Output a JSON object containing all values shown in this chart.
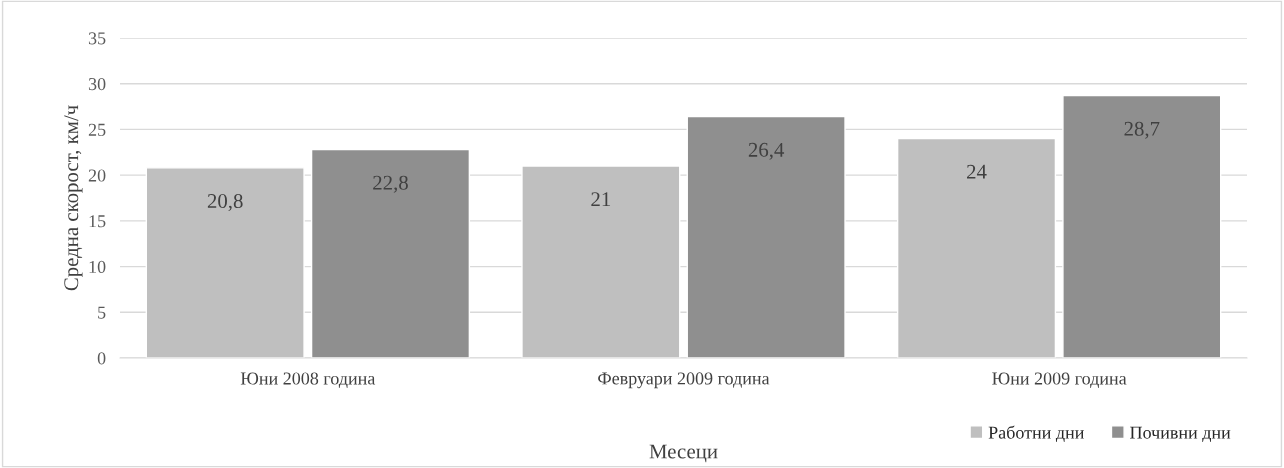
{
  "chart_data": {
    "type": "bar",
    "xlabel": "Месеци",
    "ylabel": "Средна скорост, км/ч",
    "categories": [
      "Юни 2008 година",
      "Февруари 2009 година",
      "Юни 2009 година"
    ],
    "series": [
      {
        "name": "Работни дни",
        "color": "#bfbfbf",
        "values": [
          20.8,
          21,
          24
        ],
        "value_labels": [
          "20,8",
          "21",
          "24"
        ]
      },
      {
        "name": "Почивни дни",
        "color": "#8f8f8f",
        "values": [
          22.8,
          26.4,
          28.7
        ],
        "value_labels": [
          "22,8",
          "26,4",
          "28,7"
        ]
      }
    ],
    "ylim": [
      0,
      35
    ],
    "yticks": [
      0,
      5,
      10,
      15,
      20,
      25,
      30,
      35
    ],
    "grid": "y",
    "legend": "bottom right"
  }
}
